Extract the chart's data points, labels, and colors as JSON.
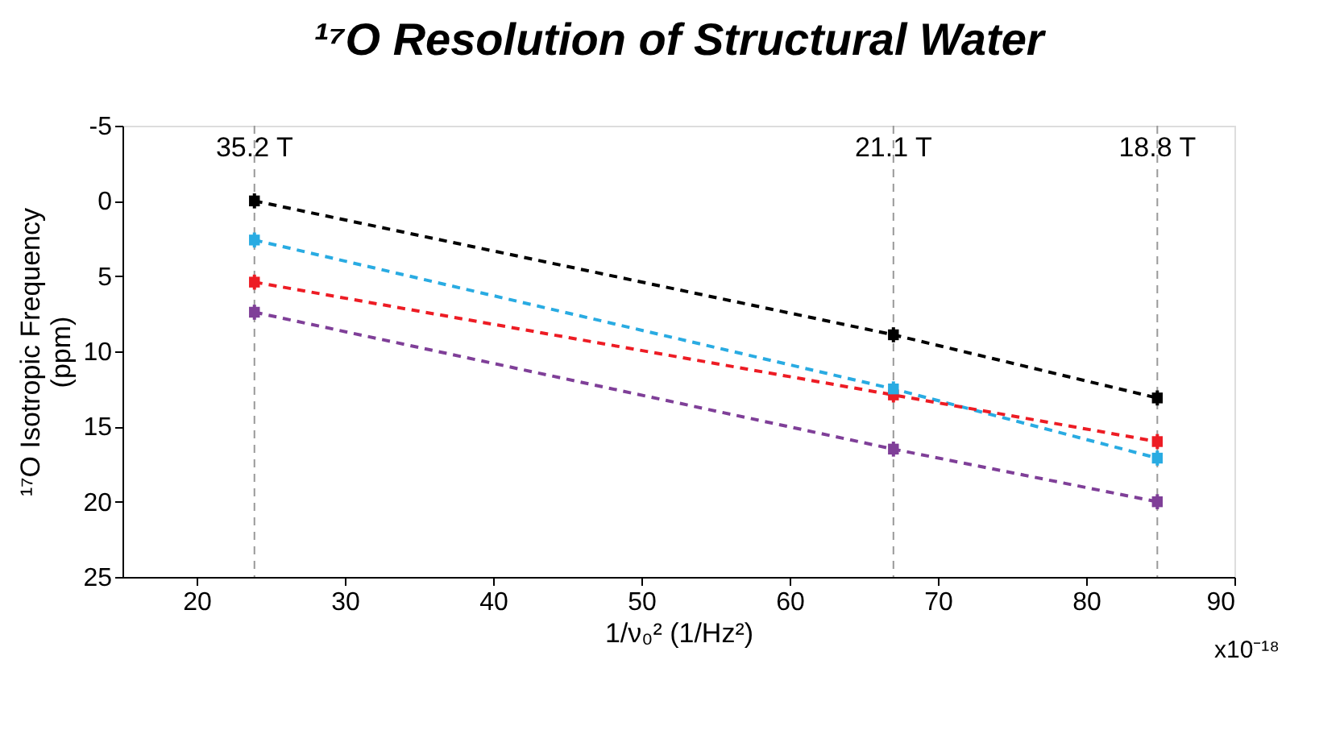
{
  "chart_data": {
    "type": "line",
    "title": "¹⁷O Resolution of Structural Water",
    "xlabel": "1/ν₀² (1/Hz²)",
    "ylabel": "¹⁷O Isotropic Frequency (ppm)",
    "x": [
      23.9,
      67.0,
      84.8
    ],
    "series": [
      {
        "color": "#000000",
        "values": [
          0.0,
          8.9,
          13.1
        ],
        "errors": [
          0.5,
          0.5,
          0.5
        ]
      },
      {
        "color": "#29abe2",
        "values": [
          2.6,
          12.5,
          17.1
        ],
        "errors": [
          0.5,
          0.5,
          0.5
        ]
      },
      {
        "color": "#ed1c24",
        "values": [
          5.4,
          12.9,
          16.0
        ],
        "errors": [
          0.5,
          0.5,
          0.5
        ]
      },
      {
        "color": "#7f3f98",
        "values": [
          7.4,
          16.5,
          20.0
        ],
        "errors": [
          0.5,
          0.5,
          0.5
        ]
      }
    ],
    "xlim": [
      15,
      90
    ],
    "xticks": [
      20,
      30,
      40,
      50,
      60,
      70,
      80,
      90
    ],
    "ylim": [
      25,
      -5
    ],
    "yticks": [
      -5,
      0,
      5,
      10,
      15,
      20,
      25
    ],
    "ref_lines": [
      {
        "axis": "x",
        "value": 23.9,
        "label": "35.2 T",
        "color": "#999999",
        "line_style": "dashed"
      },
      {
        "axis": "x",
        "value": 67.0,
        "label": "21.1 T",
        "color": "#999999",
        "line_style": "dashed"
      },
      {
        "axis": "x",
        "value": 84.8,
        "label": "18.8 T",
        "color": "#999999",
        "line_style": "dashed"
      }
    ],
    "annotations": [
      "x10⁻¹⁸"
    ],
    "marker": "square",
    "line_style": "dashed",
    "grid": false
  }
}
